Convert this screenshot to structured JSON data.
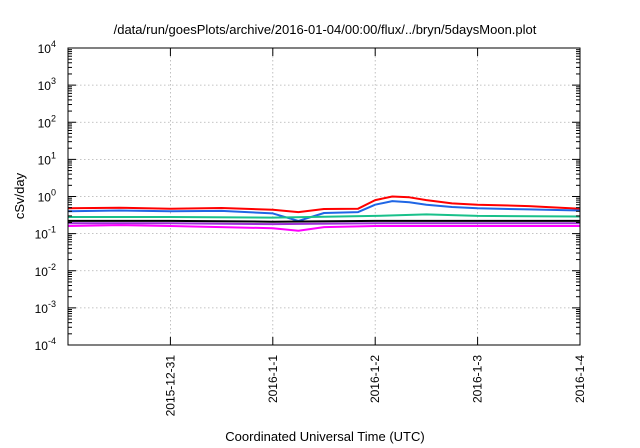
{
  "chart_data": {
    "type": "line",
    "title": "/data/run/goesPlots/archive/2016-01-04/00:00/flux/../bryn/5daysMoon.plot",
    "xlabel": "Coordinated Universal Time (UTC)",
    "ylabel": "cSv/day",
    "yscale": "log",
    "ylim": [
      0.0001,
      10000
    ],
    "y_ticks": [
      {
        "value": 0.0001,
        "mantissa": "10",
        "exp": "-4"
      },
      {
        "value": 0.001,
        "mantissa": "10",
        "exp": "-3"
      },
      {
        "value": 0.01,
        "mantissa": "10",
        "exp": "-2"
      },
      {
        "value": 0.1,
        "mantissa": "10",
        "exp": "-1"
      },
      {
        "value": 1,
        "mantissa": "10",
        "exp": "0"
      },
      {
        "value": 10,
        "mantissa": "10",
        "exp": "1"
      },
      {
        "value": 100,
        "mantissa": "10",
        "exp": "2"
      },
      {
        "value": 1000,
        "mantissa": "10",
        "exp": "3"
      },
      {
        "value": 10000,
        "mantissa": "10",
        "exp": "4"
      }
    ],
    "xlim": [
      "2015-12-30",
      "2016-01-04"
    ],
    "x_ticks": [
      {
        "value": "2015-12-31",
        "label": "2015-12-31"
      },
      {
        "value": "2016-01-01",
        "label": "2016-1-1"
      },
      {
        "value": "2016-01-02",
        "label": "2016-1-2"
      },
      {
        "value": "2016-01-03",
        "label": "2016-1-3"
      },
      {
        "value": "2016-01-04",
        "label": "2016-1-4"
      }
    ],
    "grid": true,
    "series": [
      {
        "color": "#ff0000",
        "points": [
          [
            "2015-12-30",
            0.48
          ],
          [
            "2015-12-30T12:00",
            0.5
          ],
          [
            "2015-12-31",
            0.47
          ],
          [
            "2015-12-31T12:00",
            0.49
          ],
          [
            "2016-01-01",
            0.44
          ],
          [
            "2016-01-01T06:00",
            0.38
          ],
          [
            "2016-01-01T12:00",
            0.46
          ],
          [
            "2016-01-01T20:00",
            0.47
          ],
          [
            "2016-01-02",
            0.8
          ],
          [
            "2016-01-02T04:00",
            1.0
          ],
          [
            "2016-01-02T08:00",
            0.95
          ],
          [
            "2016-01-02T12:00",
            0.8
          ],
          [
            "2016-01-02T18:00",
            0.65
          ],
          [
            "2016-01-03",
            0.6
          ],
          [
            "2016-01-03T12:00",
            0.55
          ],
          [
            "2016-01-04",
            0.47
          ]
        ]
      },
      {
        "color": "#1f66e5",
        "points": [
          [
            "2015-12-30",
            0.4
          ],
          [
            "2015-12-30T12:00",
            0.42
          ],
          [
            "2015-12-31",
            0.4
          ],
          [
            "2015-12-31T12:00",
            0.41
          ],
          [
            "2016-01-01",
            0.35
          ],
          [
            "2016-01-01T06:00",
            0.22
          ],
          [
            "2016-01-01T12:00",
            0.36
          ],
          [
            "2016-01-01T20:00",
            0.38
          ],
          [
            "2016-01-02",
            0.6
          ],
          [
            "2016-01-02T04:00",
            0.75
          ],
          [
            "2016-01-02T08:00",
            0.7
          ],
          [
            "2016-01-02T12:00",
            0.6
          ],
          [
            "2016-01-02T18:00",
            0.52
          ],
          [
            "2016-01-03",
            0.48
          ],
          [
            "2016-01-03T12:00",
            0.45
          ],
          [
            "2016-01-04",
            0.42
          ]
        ]
      },
      {
        "color": "#19c08a",
        "points": [
          [
            "2015-12-30",
            0.28
          ],
          [
            "2015-12-31",
            0.28
          ],
          [
            "2016-01-01",
            0.27
          ],
          [
            "2016-01-02",
            0.3
          ],
          [
            "2016-01-02T12:00",
            0.33
          ],
          [
            "2016-01-03",
            0.3
          ],
          [
            "2016-01-04",
            0.29
          ]
        ]
      },
      {
        "color": "#000000",
        "points": [
          [
            "2015-12-30",
            0.22
          ],
          [
            "2015-12-31",
            0.22
          ],
          [
            "2016-01-01",
            0.21
          ],
          [
            "2016-01-02",
            0.22
          ],
          [
            "2016-01-03",
            0.22
          ],
          [
            "2016-01-04",
            0.22
          ]
        ]
      },
      {
        "color": "#9b2fd6",
        "points": [
          [
            "2015-12-30",
            0.19
          ],
          [
            "2015-12-31",
            0.19
          ],
          [
            "2016-01-01",
            0.18
          ],
          [
            "2016-01-02",
            0.19
          ],
          [
            "2016-01-03",
            0.19
          ],
          [
            "2016-01-04",
            0.19
          ]
        ]
      },
      {
        "color": "#ff00ff",
        "points": [
          [
            "2015-12-30",
            0.16
          ],
          [
            "2015-12-30T12:00",
            0.17
          ],
          [
            "2015-12-31",
            0.16
          ],
          [
            "2016-01-01",
            0.14
          ],
          [
            "2016-01-01T06:00",
            0.12
          ],
          [
            "2016-01-01T12:00",
            0.15
          ],
          [
            "2016-01-02",
            0.16
          ],
          [
            "2016-01-03",
            0.16
          ],
          [
            "2016-01-04",
            0.16
          ]
        ]
      }
    ]
  }
}
